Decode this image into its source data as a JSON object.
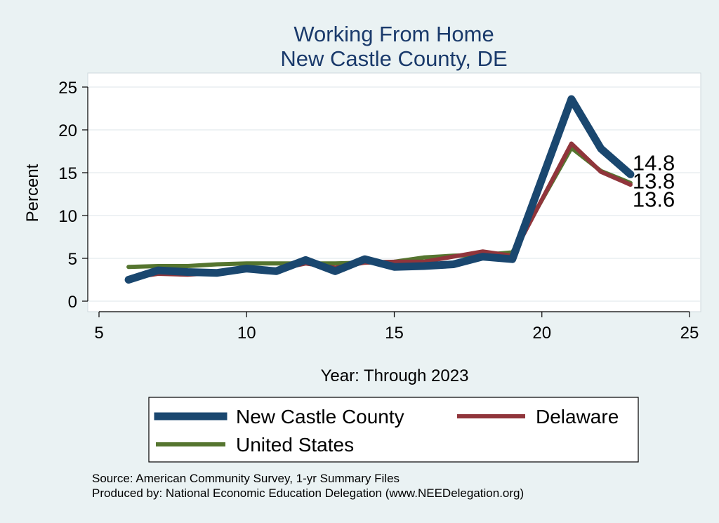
{
  "chart_data": {
    "type": "line",
    "title": "Working From Home",
    "subtitle": "New Castle County, DE",
    "xlabel": "Year: Through 2023",
    "ylabel": "Percent",
    "xlim": [
      5,
      25
    ],
    "ylim": [
      0,
      25
    ],
    "xticks": [
      5,
      10,
      15,
      20,
      25
    ],
    "yticks": [
      0,
      5,
      10,
      15,
      20,
      25
    ],
    "grid": true,
    "legend_position": "bottom",
    "x": [
      6,
      7,
      8,
      9,
      10,
      11,
      12,
      13,
      14,
      15,
      16,
      17,
      18,
      19,
      21,
      22,
      23
    ],
    "series": [
      {
        "name": "New Castle County",
        "color": "#1a476f",
        "values": [
          2.5,
          3.6,
          3.4,
          3.3,
          3.8,
          3.5,
          4.8,
          3.5,
          4.9,
          4.0,
          4.1,
          4.3,
          5.2,
          4.9,
          23.6,
          17.8,
          14.8
        ],
        "end_label": "14.8"
      },
      {
        "name": "Delaware",
        "color": "#90353b",
        "values": [
          2.7,
          3.2,
          3.1,
          3.3,
          3.8,
          3.7,
          4.4,
          3.9,
          4.5,
          4.6,
          4.6,
          5.2,
          5.8,
          5.3,
          18.4,
          15.1,
          13.6
        ],
        "end_label": "13.6"
      },
      {
        "name": "United States",
        "color": "#55752f",
        "values": [
          4.0,
          4.1,
          4.1,
          4.3,
          4.4,
          4.4,
          4.4,
          4.4,
          4.5,
          4.6,
          5.1,
          5.3,
          5.4,
          5.7,
          17.9,
          15.2,
          13.8
        ],
        "end_label": "13.8"
      }
    ]
  },
  "legend": {
    "items": [
      "New Castle County",
      "Delaware",
      "United States"
    ]
  },
  "notes": {
    "source": "Source: American Community Survey, 1-yr Summary Files",
    "produced": "Produced by: National Economic Education Delegation (www.NEEDelegation.org)"
  }
}
